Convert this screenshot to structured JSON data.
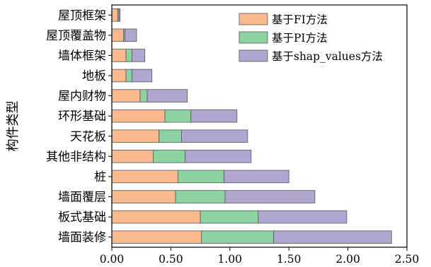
{
  "chart_data": {
    "type": "bar",
    "orientation": "horizontal",
    "stacked": true,
    "ylabel": "构件类型",
    "xlabel": "",
    "xlim": [
      0,
      2.5
    ],
    "xticks": [
      "0.00",
      "0.50",
      "1.00",
      "1.50",
      "2.00",
      "2.50"
    ],
    "grid": false,
    "legend_position": "top-right",
    "categories": [
      "屋顶框架",
      "屋顶覆盖物",
      "墙体框架",
      "地板",
      "屋内财物",
      "环形基础",
      "天花板",
      "其他非结构",
      "桩",
      "墙面覆层",
      "板式基础",
      "墙面装修"
    ],
    "series": [
      {
        "name": "基于FI方法",
        "color": "#F9B98E",
        "values": [
          0.05,
          0.1,
          0.12,
          0.12,
          0.24,
          0.45,
          0.4,
          0.35,
          0.56,
          0.54,
          0.75,
          0.76
        ]
      },
      {
        "name": "基于PI方法",
        "color": "#8DD3A1",
        "values": [
          0.01,
          0.01,
          0.05,
          0.05,
          0.06,
          0.22,
          0.19,
          0.27,
          0.39,
          0.42,
          0.49,
          0.61
        ]
      },
      {
        "name": "基于shap_values方法",
        "color": "#B1A5D2",
        "values": [
          0.01,
          0.1,
          0.11,
          0.17,
          0.34,
          0.39,
          0.56,
          0.56,
          0.55,
          0.76,
          0.75,
          1.0
        ]
      }
    ]
  }
}
